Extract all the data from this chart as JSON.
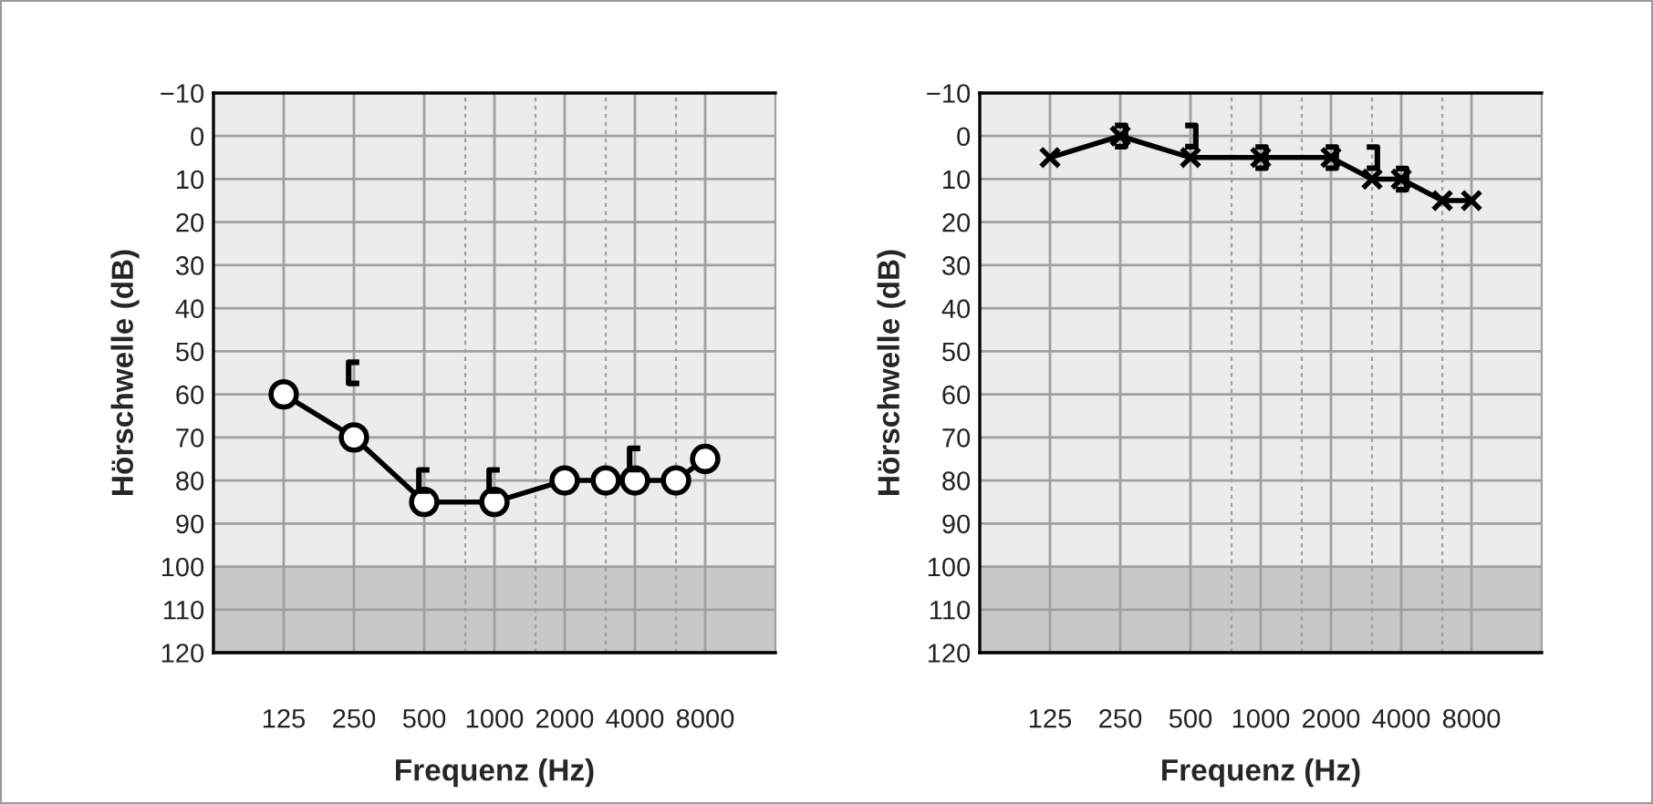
{
  "chart_data": [
    {
      "type": "line",
      "xlabel": "Frequenz (Hz)",
      "ylabel": "Hörschwelle (dB)",
      "log": "x",
      "grid": true,
      "xlim": [
        62.5,
        16000
      ],
      "ylim": [
        120,
        -10
      ],
      "xticks": [
        125,
        250,
        500,
        {
          "value": 750,
          "label": null
        },
        1000,
        {
          "value": 1500,
          "label": null
        },
        2000,
        {
          "value": 3000,
          "label": null
        },
        4000,
        {
          "value": 6000,
          "label": null
        },
        8000
      ],
      "yticks": [
        {
          "value": -10,
          "label": "−10"
        },
        0,
        10,
        20,
        30,
        40,
        50,
        60,
        70,
        80,
        90,
        100,
        110,
        120
      ],
      "bands": [
        {
          "axis": "y",
          "from": 100,
          "to": 120,
          "color": "#c8c8c8"
        }
      ],
      "series": [
        {
          "marker": "circle",
          "color": "#000000",
          "x": [
            125,
            250,
            500,
            1000,
            2000,
            3000,
            4000,
            6000,
            8000
          ],
          "values": [
            60,
            70,
            85,
            85,
            80,
            80,
            80,
            80,
            75
          ]
        },
        {
          "type": "scatter",
          "color": "#000000",
          "x": [
            250,
            500,
            1000,
            4000
          ],
          "values": [
            55,
            80,
            80,
            75
          ]
        }
      ]
    },
    {
      "type": "line",
      "xlabel": "Frequenz (Hz)",
      "ylabel": "Hörschwelle (dB)",
      "log": "x",
      "grid": true,
      "xlim": [
        62.5,
        16000
      ],
      "ylim": [
        120,
        -10
      ],
      "xticks": [
        125,
        250,
        500,
        {
          "value": 750,
          "label": null
        },
        1000,
        {
          "value": 1500,
          "label": null
        },
        2000,
        {
          "value": 3000,
          "label": null
        },
        4000,
        {
          "value": 6000,
          "label": null
        },
        8000
      ],
      "yticks": [
        {
          "value": -10,
          "label": "−10"
        },
        0,
        10,
        20,
        30,
        40,
        50,
        60,
        70,
        80,
        90,
        100,
        110,
        120
      ],
      "bands": [
        {
          "axis": "y",
          "from": 100,
          "to": 120,
          "color": "#c8c8c8"
        }
      ],
      "series": [
        {
          "marker": "cross",
          "color": "#000000",
          "x": [
            125,
            250,
            500,
            1000,
            2000,
            3000,
            4000,
            6000,
            8000
          ],
          "values": [
            5,
            0,
            5,
            5,
            5,
            10,
            10,
            15,
            15
          ]
        },
        {
          "type": "scatter",
          "color": "#000000",
          "x": [
            250,
            500,
            1000,
            2000,
            3000,
            4000
          ],
          "values": [
            0,
            0,
            5,
            5,
            5,
            10
          ]
        }
      ]
    }
  ]
}
